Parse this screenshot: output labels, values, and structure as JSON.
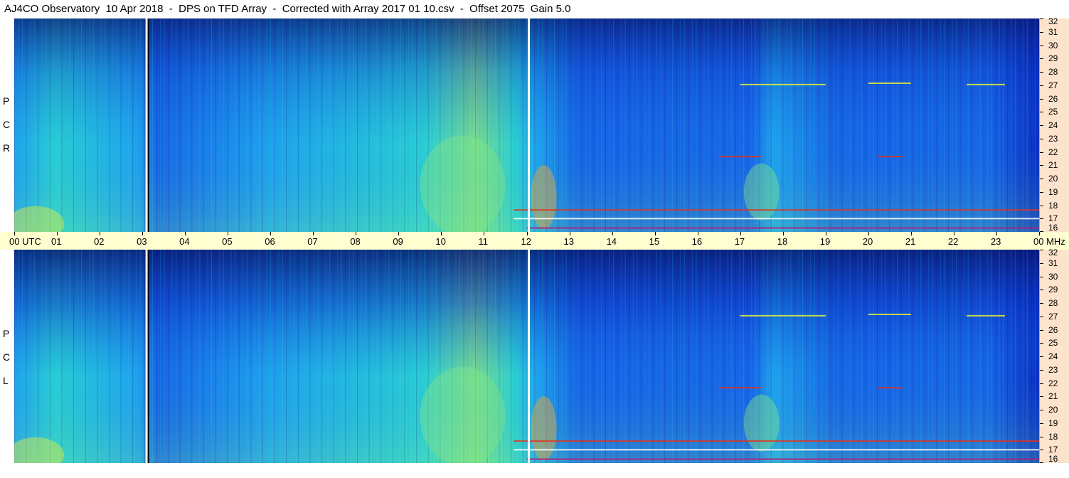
{
  "header": {
    "title": "AJ4CO Observatory  10 Apr 2018  -  DPS on TFD Array  -  Corrected with Array 2017 01 10.csv  -  Offset 2075  Gain 5.0"
  },
  "panels": {
    "top": {
      "letters": [
        "P",
        "C",
        "R"
      ]
    },
    "bottom": {
      "letters": [
        "P",
        "C",
        "L"
      ]
    }
  },
  "time_axis": {
    "first_label": "00  UTC",
    "end_label": "00 MHz"
  },
  "colors": {
    "axis_bg": "#fefed1",
    "mhz_bg": "#fde3cb",
    "colormap": [
      "#08156e",
      "#0a2fbd",
      "#1766e6",
      "#1fa6ee",
      "#2ad4d2",
      "#7fe38a",
      "#e4ee3a",
      "#f9a52c",
      "#e0341f",
      "#b31b7a",
      "#ffffff"
    ]
  },
  "chart_data": {
    "type": "heatmap",
    "title": "AJ4CO Observatory  10 Apr 2018  -  DPS on TFD Array  -  Corrected with Array 2017 01 10.csv  -  Offset 2075  Gain 5.0",
    "xlabel": "UTC",
    "ylabel": "MHz",
    "x_ticks": [
      "00",
      "01",
      "02",
      "03",
      "04",
      "05",
      "06",
      "07",
      "08",
      "09",
      "10",
      "11",
      "12",
      "13",
      "14",
      "15",
      "16",
      "17",
      "18",
      "19",
      "20",
      "21",
      "22",
      "23",
      "00"
    ],
    "y_ticks": [
      "16",
      "17",
      "18",
      "19",
      "20",
      "21",
      "22",
      "23",
      "24",
      "25",
      "26",
      "27",
      "28",
      "29",
      "30",
      "31",
      "32"
    ],
    "xlim": [
      0,
      24
    ],
    "ylim": [
      16,
      32
    ],
    "panels": [
      {
        "name": "RCP",
        "marker_times_utc": [
          3.1,
          12.05
        ]
      },
      {
        "name": "LCP",
        "marker_times_utc": [
          3.1,
          12.05
        ]
      }
    ],
    "legend": "none",
    "grid": false
  }
}
